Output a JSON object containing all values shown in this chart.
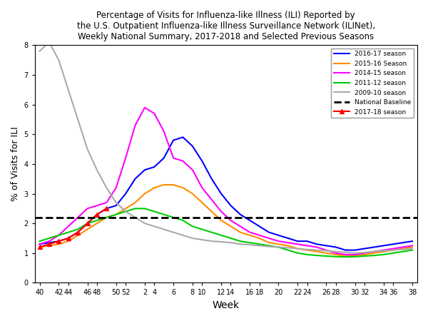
{
  "title": "Percentage of Visits for Influenza-like Illness (ILI) Reported by\nthe U.S. Outpatient Influenza-like Illness Surveillance Network (ILINet),\nWeekly National Summary, 2017-2018 and Selected Previous Seasons",
  "xlabel": "Week",
  "ylabel": "% of Visits for ILI",
  "xlim_labels": [
    "40",
    "42",
    "44",
    "46",
    "48",
    "50",
    "52",
    "2",
    "4",
    "6",
    "8",
    "10",
    "12",
    "14",
    "16",
    "18",
    "20",
    "22",
    "24",
    "26",
    "28",
    "30",
    "32",
    "34",
    "36",
    "38"
  ],
  "ylim": [
    0,
    8
  ],
  "yticks": [
    0,
    1,
    2,
    3,
    4,
    5,
    6,
    7,
    8
  ],
  "national_baseline": 2.2,
  "season_order": [
    "2016-17 season",
    "2015-16 Season",
    "2014-15 season",
    "2011-12 season",
    "2009-10 season",
    "2017-18 season"
  ],
  "seasons": {
    "2016-17 season": {
      "color": "#0000FF",
      "linestyle": "-",
      "marker": null,
      "linewidth": 1.5,
      "values": [
        1.3,
        1.35,
        1.4,
        1.5,
        1.7,
        2.0,
        2.3,
        2.5,
        2.6,
        3.0,
        3.5,
        3.8,
        3.9,
        4.2,
        4.8,
        4.9,
        4.6,
        4.1,
        3.5,
        3.0,
        2.6,
        2.3,
        2.1,
        1.9,
        1.7,
        1.6,
        1.5,
        1.4,
        1.4,
        1.3,
        1.25,
        1.2,
        1.1,
        1.1,
        1.15,
        1.2,
        1.25,
        1.3,
        1.35,
        1.4
      ]
    },
    "2015-16 Season": {
      "color": "#FF8C00",
      "linestyle": "-",
      "marker": null,
      "linewidth": 1.5,
      "values": [
        1.2,
        1.25,
        1.3,
        1.4,
        1.6,
        1.8,
        2.0,
        2.2,
        2.3,
        2.5,
        2.7,
        3.0,
        3.2,
        3.3,
        3.3,
        3.2,
        3.0,
        2.7,
        2.4,
        2.1,
        1.9,
        1.7,
        1.6,
        1.5,
        1.35,
        1.3,
        1.25,
        1.15,
        1.1,
        1.05,
        1.0,
        0.95,
        0.9,
        0.92,
        0.95,
        1.0,
        1.05,
        1.1,
        1.15,
        1.2
      ]
    },
    "2014-15 season": {
      "color": "#FF00FF",
      "linestyle": "-",
      "marker": null,
      "linewidth": 1.5,
      "values": [
        1.3,
        1.4,
        1.6,
        1.9,
        2.2,
        2.5,
        2.6,
        2.7,
        3.2,
        4.2,
        5.3,
        5.9,
        5.7,
        5.1,
        4.2,
        4.1,
        3.8,
        3.2,
        2.8,
        2.4,
        2.1,
        1.9,
        1.7,
        1.6,
        1.5,
        1.4,
        1.35,
        1.3,
        1.25,
        1.2,
        1.1,
        1.0,
        0.95,
        0.95,
        1.0,
        1.05,
        1.1,
        1.15,
        1.2,
        1.25
      ]
    },
    "2011-12 season": {
      "color": "#00CC00",
      "linestyle": "-",
      "marker": null,
      "linewidth": 1.5,
      "values": [
        1.4,
        1.5,
        1.6,
        1.7,
        1.8,
        2.0,
        2.1,
        2.2,
        2.3,
        2.4,
        2.5,
        2.5,
        2.4,
        2.3,
        2.2,
        2.1,
        1.9,
        1.8,
        1.7,
        1.6,
        1.5,
        1.4,
        1.35,
        1.3,
        1.25,
        1.2,
        1.1,
        1.0,
        0.95,
        0.92,
        0.9,
        0.88,
        0.87,
        0.88,
        0.9,
        0.92,
        0.95,
        1.0,
        1.05,
        1.1
      ]
    },
    "2009-10 season": {
      "color": "#AAAAAA",
      "linestyle": "-",
      "marker": null,
      "linewidth": 1.5,
      "values": [
        7.8,
        8.1,
        7.5,
        6.5,
        5.5,
        4.5,
        3.8,
        3.2,
        2.7,
        2.4,
        2.2,
        2.0,
        1.9,
        1.8,
        1.7,
        1.6,
        1.5,
        1.45,
        1.4,
        1.38,
        1.35,
        1.3,
        1.28,
        1.25,
        1.22,
        1.2,
        1.18,
        1.15,
        1.12,
        1.1,
        1.08,
        1.05,
        1.03,
        1.0,
        1.02,
        1.05,
        1.08,
        1.1,
        1.12,
        1.15
      ]
    },
    "2017-18 season": {
      "color": "#FF0000",
      "linestyle": "-",
      "marker": "^",
      "linewidth": 1.5,
      "values": [
        1.2,
        1.3,
        1.4,
        1.5,
        1.7,
        2.0,
        2.3,
        2.5,
        null,
        null,
        null,
        null,
        null,
        null,
        null,
        null,
        null,
        null,
        null,
        null,
        null,
        null,
        null,
        null,
        null,
        null,
        null,
        null,
        null,
        null,
        null,
        null,
        null,
        null,
        null,
        null,
        null,
        null,
        null,
        null
      ]
    }
  }
}
